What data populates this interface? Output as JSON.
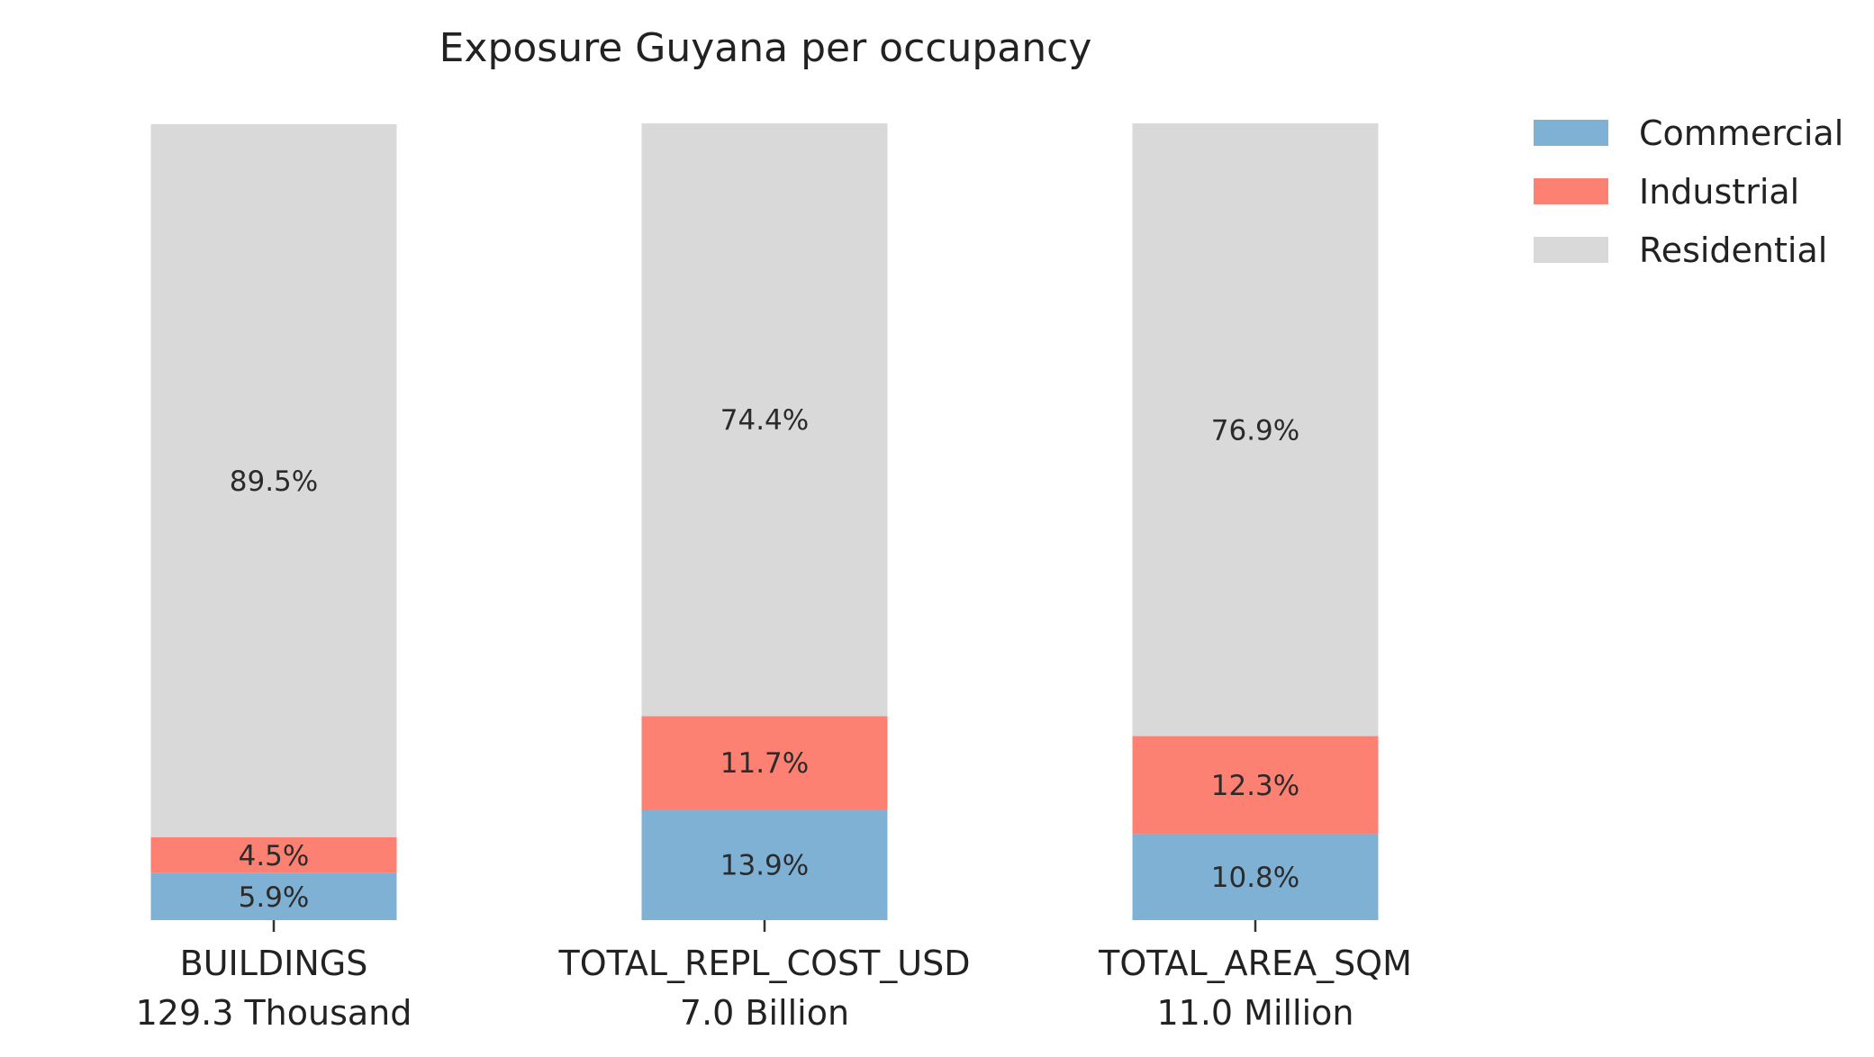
{
  "chart_data": {
    "type": "bar",
    "stacked": true,
    "normalized_percent": true,
    "title": "Exposure Guyana per occupancy",
    "categories": [
      {
        "name": "BUILDINGS",
        "total": "129.3 Thousand"
      },
      {
        "name": "TOTAL_REPL_COST_USD",
        "total": "7.0 Billion"
      },
      {
        "name": "TOTAL_AREA_SQM",
        "total": "11.0 Million"
      }
    ],
    "series": [
      {
        "name": "Commercial",
        "color": "#7fb1d4",
        "values": [
          5.9,
          13.9,
          10.8
        ],
        "labels": [
          "5.9%",
          "13.9%",
          "10.8%"
        ]
      },
      {
        "name": "Industrial",
        "color": "#fc8172",
        "values": [
          4.5,
          11.7,
          12.3
        ],
        "labels": [
          "4.5%",
          "11.7%",
          "12.3%"
        ]
      },
      {
        "name": "Residential",
        "color": "#d9d9d9",
        "values": [
          89.5,
          74.4,
          76.9
        ],
        "labels": [
          "89.5%",
          "74.4%",
          "76.9%"
        ]
      }
    ],
    "ylim": [
      0,
      100
    ],
    "grid": false,
    "legend_position": "top-right"
  }
}
